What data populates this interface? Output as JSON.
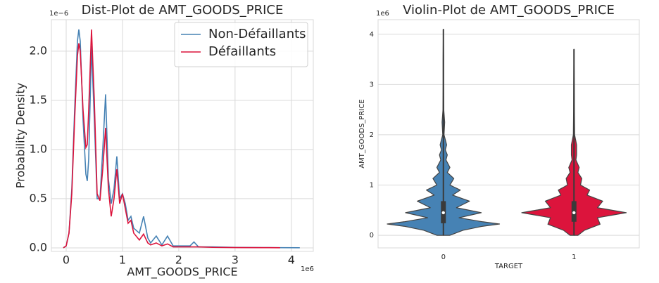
{
  "chart_data": [
    {
      "type": "line",
      "title": "Dist-Plot de AMT_GOODS_PRICE",
      "xlabel": "AMT_GOODS_PRICE",
      "ylabel": "Probability Density",
      "x_offset_label": "1e6",
      "y_offset_label": "1e−6",
      "x": [
        -0.05,
        0,
        0.05,
        0.1,
        0.15,
        0.2,
        0.225,
        0.25,
        0.3,
        0.35,
        0.375,
        0.4,
        0.45,
        0.5,
        0.55,
        0.6,
        0.65,
        0.7,
        0.75,
        0.8,
        0.85,
        0.9,
        0.95,
        1.0,
        1.05,
        1.1,
        1.15,
        1.2,
        1.3,
        1.375,
        1.45,
        1.5,
        1.6,
        1.7,
        1.8,
        1.9,
        2.0,
        2.2,
        2.27,
        2.35,
        2.6,
        3.0,
        3.5,
        3.8,
        4.15
      ],
      "series": [
        {
          "name": "Non-Défaillants",
          "color": "#4682b4",
          "values": [
            0,
            0.02,
            0.15,
            0.6,
            1.4,
            2.1,
            2.22,
            2.1,
            1.3,
            0.75,
            0.68,
            0.9,
            2.05,
            1.3,
            0.5,
            0.5,
            1.0,
            1.56,
            0.7,
            0.45,
            0.6,
            0.93,
            0.5,
            0.55,
            0.45,
            0.28,
            0.32,
            0.2,
            0.15,
            0.32,
            0.1,
            0.05,
            0.12,
            0.03,
            0.12,
            0.02,
            0.02,
            0.02,
            0.06,
            0.01,
            0.01,
            0.005,
            0.003,
            0.002,
            0.001
          ]
        },
        {
          "name": "Défaillants",
          "color": "#dc143c",
          "values": [
            0,
            0.02,
            0.15,
            0.55,
            1.3,
            1.95,
            2.08,
            2.0,
            1.4,
            1.02,
            1.05,
            1.4,
            2.22,
            1.5,
            0.55,
            0.48,
            0.8,
            1.22,
            0.6,
            0.32,
            0.5,
            0.8,
            0.45,
            0.55,
            0.4,
            0.25,
            0.28,
            0.15,
            0.08,
            0.14,
            0.05,
            0.03,
            0.05,
            0.02,
            0.04,
            0.01,
            0.01,
            0.01,
            0.01,
            0.01,
            0.005,
            0.003,
            0.002,
            0.001,
            null
          ]
        }
      ],
      "xlim": [
        -0.2625,
        4.39
      ],
      "xticks": [
        0,
        1,
        2,
        3,
        4
      ],
      "ylim": [
        -0.036,
        2.32
      ],
      "yticks": [
        {
          "value": 0,
          "label": "0.0"
        },
        0.5,
        {
          "value": 1,
          "label": "1.0"
        },
        1.5,
        {
          "value": 2,
          "label": "2.0"
        }
      ],
      "grid": true,
      "legend": "upper right"
    },
    {
      "type": "violin",
      "title": "Violin-Plot de AMT_GOODS_PRICE",
      "xlabel": "TARGET",
      "ylabel": "AMT_GOODS_PRICE",
      "y_offset_label": "1e6",
      "categories": [
        "0",
        "1"
      ],
      "series": [
        {
          "color": "#4682b4",
          "y": [
            0,
            0.1,
            0.18,
            0.225,
            0.27,
            0.35,
            0.45,
            0.55,
            0.68,
            0.8,
            0.9,
            1.0,
            1.13,
            1.25,
            1.35,
            1.5,
            1.6,
            1.7,
            1.8,
            2.0,
            2.25,
            2.5,
            3.0,
            3.5,
            4.1
          ],
          "widths": [
            0.05,
            0.15,
            0.3,
            0.43,
            0.3,
            0.12,
            0.29,
            0.1,
            0.2,
            0.07,
            0.13,
            0.05,
            0.08,
            0.03,
            0.05,
            0.02,
            0.03,
            0.015,
            0.025,
            0.005,
            0.01,
            0.003,
            0.002,
            0.002,
            0
          ],
          "q1": 0.24,
          "median": 0.45,
          "q3": 0.68,
          "whisker_low": 0,
          "whisker_high": 4.1
        },
        {
          "color": "#dc143c",
          "y": [
            0,
            0.1,
            0.22,
            0.35,
            0.45,
            0.55,
            0.68,
            0.8,
            0.9,
            1.0,
            1.13,
            1.25,
            1.35,
            1.5,
            1.6,
            1.8,
            2.0,
            2.5,
            3.0,
            3.7
          ],
          "widths": [
            0.03,
            0.08,
            0.2,
            0.18,
            0.4,
            0.18,
            0.22,
            0.1,
            0.12,
            0.05,
            0.06,
            0.03,
            0.04,
            0.015,
            0.02,
            0.02,
            0.005,
            0.003,
            0.002,
            0
          ],
          "q1": 0.27,
          "median": 0.45,
          "q3": 0.68,
          "whisker_low": 0,
          "whisker_high": 3.7
        }
      ],
      "xlim": [
        -0.5,
        1.5
      ],
      "ylim": [
        -0.25,
        4.29
      ],
      "yticks": [
        0,
        1,
        2,
        3,
        4
      ],
      "grid": "y"
    }
  ]
}
